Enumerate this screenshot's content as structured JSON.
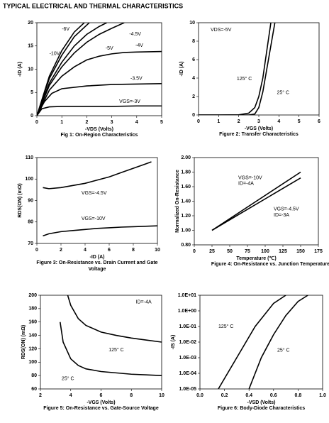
{
  "page_title": "TYPICAL ELECTRICAL AND THERMAL CHARACTERISTICS",
  "chart_data": [
    {
      "type": "line",
      "caption": [
        "Fig 1: On-Region Characteristics"
      ],
      "xlabel": "-VDS (Volts)",
      "ylabel": "-ID (A)",
      "xlim": [
        0,
        5
      ],
      "ylim": [
        0,
        20
      ],
      "xticks": [
        0,
        1,
        2,
        3,
        4,
        5
      ],
      "yticks": [
        0,
        5,
        10,
        15,
        20
      ],
      "color": "#000000",
      "annotations": [
        "-6V",
        "-4.5V",
        "-5V",
        "-4V",
        "-10V",
        "-3.5V",
        "VGS=-3V"
      ],
      "series": [
        {
          "x": [
            0,
            0.2,
            0.5,
            1,
            2,
            3,
            4,
            5
          ],
          "values": [
            0,
            1.5,
            1.9,
            2,
            2,
            2,
            2.1,
            2.1
          ]
        },
        {
          "x": [
            0,
            0.3,
            0.6,
            1,
            2,
            3,
            4,
            5
          ],
          "values": [
            0,
            3,
            4.8,
            5.8,
            6.4,
            6.7,
            6.8,
            6.9
          ]
        },
        {
          "x": [
            0,
            0.5,
            1,
            1.5,
            2,
            2.5,
            3,
            3.5,
            4,
            5
          ],
          "values": [
            0,
            5.5,
            8.5,
            10.5,
            12,
            12.8,
            13.3,
            13.6,
            13.7,
            13.8
          ]
        },
        {
          "x": [
            0,
            0.5,
            1,
            1.5,
            2,
            2.5,
            3,
            3.5
          ],
          "values": [
            0,
            6.5,
            10.5,
            13.5,
            15.8,
            17.5,
            18.8,
            20
          ]
        },
        {
          "x": [
            0,
            0.5,
            1,
            1.5,
            2,
            2.5,
            2.8
          ],
          "values": [
            0,
            7,
            11.5,
            15,
            17.5,
            19.2,
            20
          ]
        },
        {
          "x": [
            0,
            0.5,
            1,
            1.5,
            2.1
          ],
          "values": [
            0,
            8,
            13,
            17,
            20
          ]
        },
        {
          "x": [
            0,
            0.5,
            1,
            1.5,
            1.9
          ],
          "values": [
            0,
            8.5,
            14,
            18,
            20
          ]
        }
      ]
    },
    {
      "type": "line",
      "caption": [
        "Figure 2: Transfer Characteristics"
      ],
      "xlabel": "-VGS (Volts)",
      "ylabel": "-ID (A)",
      "xlim": [
        0,
        6
      ],
      "ylim": [
        0,
        10
      ],
      "xticks": [
        0,
        1,
        2,
        3,
        4,
        5,
        6
      ],
      "yticks": [
        0,
        2,
        4,
        6,
        8,
        10
      ],
      "color": "#000000",
      "annotations": [
        "VDS=-5V",
        "125° C",
        "25° C"
      ],
      "series": [
        {
          "x": [
            0,
            1,
            2,
            2.5,
            2.8,
            3.0,
            3.2,
            3.4,
            3.6
          ],
          "values": [
            0,
            0,
            0.02,
            0.2,
            0.8,
            2,
            4,
            7,
            10
          ]
        },
        {
          "x": [
            0,
            2.5,
            2.8,
            3.0,
            3.2,
            3.4,
            3.6,
            3.8
          ],
          "values": [
            0,
            0,
            0.1,
            0.8,
            2.5,
            5,
            7.5,
            10
          ]
        }
      ]
    },
    {
      "type": "line",
      "caption": [
        "Figure 3: On-Resistance vs. Drain Current and Gate",
        "Voltage"
      ],
      "xlabel": "-ID (A)",
      "ylabel": "RDS(ON) (mΩ)",
      "xlim": [
        0,
        10
      ],
      "ylim": [
        70,
        110
      ],
      "xticks": [
        0,
        2,
        4,
        6,
        8,
        10
      ],
      "yticks": [
        70,
        80,
        90,
        100,
        110
      ],
      "color": "#000000",
      "annotations": [
        "VGS=-4.5V",
        "VGS=-10V"
      ],
      "series": [
        {
          "x": [
            0.5,
            1,
            2,
            3,
            4,
            5,
            6,
            7,
            8,
            9,
            9.5
          ],
          "values": [
            96,
            95.5,
            96,
            97,
            98,
            99.5,
            101,
            103,
            105,
            107,
            108
          ]
        },
        {
          "x": [
            0.5,
            1,
            2,
            3,
            4,
            5,
            6,
            7,
            8,
            9,
            10
          ],
          "values": [
            73.5,
            74.5,
            75.5,
            76,
            76.5,
            77,
            77.3,
            77.6,
            77.8,
            78,
            78.2
          ]
        }
      ]
    },
    {
      "type": "line",
      "caption": [
        "Figure 4: On-Resistance vs. Junction Temperature"
      ],
      "xlabel": "Temperature (℃)",
      "ylabel": "Normalized On-Resistance",
      "xlim": [
        0,
        175
      ],
      "ylim": [
        0.8,
        2.0
      ],
      "xticks": [
        0,
        25,
        50,
        75,
        100,
        125,
        150,
        175
      ],
      "yticks": [
        {
          "value": 0.8,
          "label": "0.80"
        },
        {
          "value": 1.0,
          "label": "1.00"
        },
        {
          "value": 1.2,
          "label": "1.20"
        },
        {
          "value": 1.4,
          "label": "1.40"
        },
        {
          "value": 1.6,
          "label": "1.60"
        },
        {
          "value": 1.8,
          "label": "1.80"
        },
        {
          "value": 2.0,
          "label": "2.00"
        }
      ],
      "color": "#000000",
      "annotations": [
        "VGS=-10V",
        "ID=-4A",
        "VGS=-4.5V",
        "ID=-3A"
      ],
      "series": [
        {
          "x": [
            25,
            150
          ],
          "values": [
            1.0,
            1.8
          ]
        },
        {
          "x": [
            25,
            150
          ],
          "values": [
            1.0,
            1.72
          ]
        }
      ]
    },
    {
      "type": "line",
      "caption": [
        "Figure 5: On-Resistance vs. Gate-Source Voltage"
      ],
      "xlabel": "-VGS (Volts)",
      "ylabel": "RDS(ON) (mΩ)",
      "xlim": [
        2,
        10
      ],
      "ylim": [
        60,
        200
      ],
      "xticks": [
        2,
        4,
        6,
        8,
        10
      ],
      "yticks": [
        60,
        80,
        100,
        120,
        140,
        160,
        180,
        200
      ],
      "color": "#000000",
      "annotations": [
        "ID=-4A",
        "125° C",
        "25° C"
      ],
      "series": [
        {
          "x": [
            3.8,
            4,
            4.5,
            5,
            6,
            7,
            8,
            9,
            10
          ],
          "values": [
            200,
            185,
            165,
            155,
            145,
            140,
            136,
            133,
            130
          ]
        },
        {
          "x": [
            3.3,
            3.5,
            4,
            4.5,
            5,
            6,
            7,
            8,
            9,
            10
          ],
          "values": [
            160,
            130,
            105,
            95,
            90,
            86,
            84,
            82,
            81,
            80
          ]
        }
      ]
    },
    {
      "type": "line",
      "caption": [
        "Figure 6: Body-Diode Characteristics"
      ],
      "xlabel": "-VSD (Volts)",
      "ylabel": "-IS (A)",
      "log_y": true,
      "xlim": [
        0,
        1.0
      ],
      "ylim": [
        1e-05,
        10
      ],
      "xticks": [
        {
          "value": 0,
          "label": "0.0"
        },
        0.2,
        0.4,
        0.6,
        0.8,
        {
          "value": 1.0,
          "label": "1.0"
        }
      ],
      "yticks": [
        {
          "value": 10,
          "label": "1.0E+01"
        },
        {
          "value": 1,
          "label": "1.0E+00"
        },
        {
          "value": 0.1,
          "label": "1.0E-01"
        },
        {
          "value": 0.01,
          "label": "1.0E-02"
        },
        {
          "value": 0.001,
          "label": "1.0E-03"
        },
        {
          "value": 0.0001,
          "label": "1.0E-04"
        },
        {
          "value": 1e-05,
          "label": "1.0E-05"
        }
      ],
      "color": "#000000",
      "annotations": [
        "125° C",
        "25° C"
      ],
      "series": [
        {
          "x": [
            0.15,
            0.3,
            0.45,
            0.6,
            0.7
          ],
          "values": [
            1e-05,
            0.001,
            0.1,
            3,
            10
          ]
        },
        {
          "x": [
            0.4,
            0.5,
            0.6,
            0.7,
            0.8,
            0.88
          ],
          "values": [
            1e-05,
            0.001,
            0.03,
            0.5,
            4,
            10
          ]
        }
      ]
    }
  ]
}
